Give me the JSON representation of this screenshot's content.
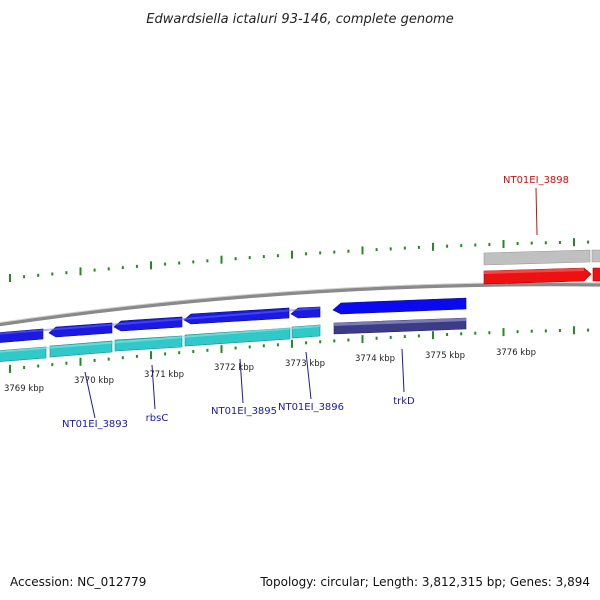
{
  "title": "Edwardsiella ictaluri 93-146, complete genome",
  "accession": "Accession: NC_012779",
  "summary": "Topology: circular; Length: 3,812,315 bp; Genes: 3,894",
  "colors": {
    "backbone": "#8a8a8a",
    "forward_cds": "#1a1ae0",
    "forward_gene": "#30c8c8",
    "reverse_cds": "#0a0af0",
    "reverse_gene": "#3c3c86",
    "highlight_cds": "#ee1111",
    "highlight_gene": "#c0c0c0",
    "tick": "#228b22",
    "label_blue": "#1a1aa8",
    "label_red": "#cc1111"
  },
  "ticks": [
    {
      "label": "3769 kbp"
    },
    {
      "label": "3770 kbp"
    },
    {
      "label": "3771 kbp"
    },
    {
      "label": "3772 kbp"
    },
    {
      "label": "3773 kbp"
    },
    {
      "label": "3774 kbp"
    },
    {
      "label": "3775 kbp"
    },
    {
      "label": "3776 kbp"
    }
  ],
  "gene_labels": [
    {
      "name": "NT01EI_3893"
    },
    {
      "name": "rbsC"
    },
    {
      "name": "NT01EI_3895"
    },
    {
      "name": "NT01EI_3896"
    },
    {
      "name": "trkD"
    },
    {
      "name": "NT01EI_3898"
    }
  ]
}
